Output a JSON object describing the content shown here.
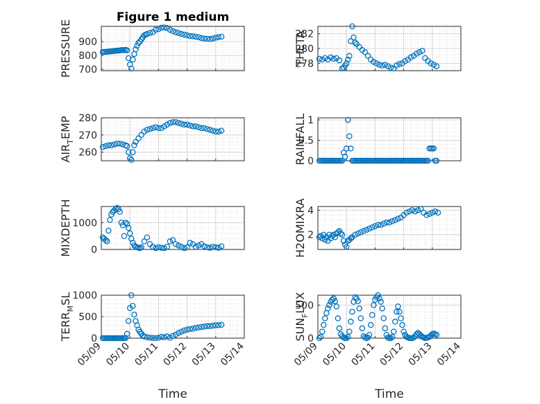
{
  "figure_title": "Figure 1 medium",
  "colors": {
    "marker": "#0072BD",
    "axes": "#262626",
    "grid": "#dfdfdf"
  },
  "chart_data": [
    {
      "type": "scatter",
      "title": "Figure 1 medium",
      "ylabel": {
        "main": "PRESSURE",
        "sub": ""
      },
      "xlabel": "",
      "xlim": [
        0,
        5
      ],
      "ylim": [
        690,
        1010
      ],
      "yticks": [
        700,
        800,
        900
      ],
      "grid": true,
      "x": [
        0.05,
        0.1,
        0.15,
        0.2,
        0.25,
        0.3,
        0.35,
        0.4,
        0.45,
        0.5,
        0.55,
        0.6,
        0.65,
        0.7,
        0.75,
        0.8,
        0.85,
        0.9,
        0.95,
        1.0,
        1.05,
        1.1,
        1.15,
        1.2,
        1.25,
        1.3,
        1.35,
        1.4,
        1.45,
        1.5,
        1.55,
        1.6,
        1.7,
        1.8,
        1.9,
        2.0,
        2.1,
        2.2,
        2.3,
        2.4,
        2.5,
        2.6,
        2.7,
        2.8,
        2.9,
        3.0,
        3.1,
        3.2,
        3.3,
        3.4,
        3.5,
        3.6,
        3.7,
        3.8,
        3.9,
        4.0,
        4.1,
        4.2
      ],
      "y": [
        825,
        825,
        826,
        826,
        828,
        829,
        830,
        831,
        832,
        833,
        834,
        835,
        836,
        838,
        838,
        839,
        840,
        836,
        780,
        735,
        705,
        770,
        810,
        845,
        870,
        890,
        900,
        915,
        930,
        945,
        950,
        955,
        962,
        968,
        985,
        990,
        1000,
        1002,
        998,
        985,
        975,
        968,
        962,
        955,
        950,
        945,
        940,
        938,
        935,
        932,
        925,
        922,
        920,
        918,
        922,
        928,
        932,
        935
      ]
    },
    {
      "type": "scatter",
      "ylabel": {
        "main": "THETA",
        "sub": ""
      },
      "xlabel": "",
      "xlim": [
        0,
        5
      ],
      "ylim": [
        277,
        283
      ],
      "yticks": [
        278,
        280,
        282
      ],
      "grid": true,
      "x": [
        0.05,
        0.15,
        0.25,
        0.35,
        0.45,
        0.55,
        0.65,
        0.75,
        0.85,
        0.9,
        0.95,
        1.0,
        1.05,
        1.1,
        1.15,
        1.2,
        1.25,
        1.3,
        1.35,
        1.45,
        1.55,
        1.65,
        1.75,
        1.85,
        1.95,
        2.05,
        2.15,
        2.25,
        2.35,
        2.45,
        2.55,
        2.65,
        2.75,
        2.85,
        2.95,
        3.05,
        3.15,
        3.25,
        3.35,
        3.45,
        3.55,
        3.65,
        3.75,
        3.85,
        3.95,
        4.05,
        4.15
      ],
      "y": [
        278.6,
        278.5,
        278.7,
        278.5,
        278.8,
        278.6,
        278.7,
        278.4,
        277.3,
        277.4,
        277.7,
        278.0,
        278.5,
        279.0,
        281.0,
        283.0,
        281.5,
        280.8,
        280.6,
        280.2,
        279.8,
        279.5,
        279.0,
        278.5,
        278.2,
        278.0,
        277.8,
        277.7,
        277.8,
        277.6,
        277.4,
        277.3,
        277.7,
        277.9,
        278.0,
        278.3,
        278.5,
        278.8,
        279.0,
        279.3,
        279.5,
        279.7,
        278.7,
        278.3,
        278.0,
        277.8,
        277.6
      ]
    },
    {
      "type": "scatter",
      "ylabel": {
        "main": "AIR",
        "sub": "T",
        "rest": "EMP"
      },
      "xlabel": "",
      "xlim": [
        0,
        5
      ],
      "ylim": [
        255,
        280
      ],
      "yticks": [
        260,
        270,
        280
      ],
      "grid": true,
      "x": [
        0.05,
        0.15,
        0.25,
        0.35,
        0.45,
        0.55,
        0.65,
        0.75,
        0.85,
        0.9,
        0.95,
        1.0,
        1.05,
        1.1,
        1.15,
        1.2,
        1.3,
        1.4,
        1.5,
        1.6,
        1.7,
        1.8,
        1.9,
        2.0,
        2.1,
        2.2,
        2.3,
        2.4,
        2.5,
        2.6,
        2.7,
        2.8,
        2.9,
        3.0,
        3.1,
        3.2,
        3.3,
        3.4,
        3.5,
        3.6,
        3.7,
        3.8,
        3.9,
        4.0,
        4.1,
        4.2
      ],
      "y": [
        263,
        263.5,
        264,
        264,
        264.5,
        265,
        265,
        264.5,
        264,
        263.5,
        260,
        256.5,
        255.5,
        260,
        264,
        266,
        268,
        270,
        272,
        273,
        273.5,
        274,
        274.5,
        274,
        274,
        275,
        276,
        277,
        277.5,
        277.5,
        277,
        276.5,
        276,
        276,
        275.5,
        275,
        275,
        274.5,
        274,
        274,
        273.5,
        273,
        272.5,
        272,
        272,
        272.5
      ]
    },
    {
      "type": "scatter",
      "ylabel": {
        "main": "RAINFALL",
        "sub": ""
      },
      "xlabel": "",
      "xlim": [
        0,
        5
      ],
      "ylim": [
        0,
        1.05
      ],
      "yticks": [
        0,
        0.5,
        1
      ],
      "grid": true,
      "x": [
        0.05,
        0.1,
        0.15,
        0.2,
        0.25,
        0.3,
        0.35,
        0.4,
        0.45,
        0.5,
        0.55,
        0.6,
        0.65,
        0.7,
        0.75,
        0.8,
        0.85,
        0.9,
        0.95,
        1.0,
        1.05,
        1.1,
        1.15,
        1.2,
        1.25,
        1.3,
        1.35,
        1.4,
        1.45,
        1.5,
        1.55,
        1.6,
        1.65,
        1.7,
        1.75,
        1.8,
        1.85,
        1.9,
        1.95,
        2.0,
        2.05,
        2.1,
        2.15,
        2.2,
        2.25,
        2.3,
        2.35,
        2.4,
        2.45,
        2.5,
        2.55,
        2.6,
        2.65,
        2.7,
        2.75,
        2.8,
        2.85,
        2.9,
        2.95,
        3.0,
        3.05,
        3.1,
        3.15,
        3.2,
        3.25,
        3.3,
        3.35,
        3.4,
        3.45,
        3.5,
        3.55,
        3.6,
        3.65,
        3.7,
        3.75,
        3.8,
        3.85,
        3.9,
        3.95,
        4.0,
        4.05,
        4.1,
        4.15
      ],
      "y": [
        0,
        0,
        0,
        0,
        0,
        0,
        0,
        0,
        0,
        0,
        0,
        0,
        0,
        0,
        0,
        0,
        0,
        0.2,
        0.1,
        0.3,
        1.0,
        0.6,
        0.3,
        0,
        0,
        0,
        0,
        0,
        0,
        0,
        0,
        0,
        0,
        0,
        0,
        0,
        0,
        0,
        0,
        0,
        0,
        0,
        0,
        0,
        0,
        0,
        0,
        0,
        0,
        0,
        0,
        0,
        0,
        0,
        0,
        0,
        0,
        0,
        0,
        0,
        0,
        0,
        0,
        0,
        0,
        0,
        0,
        0,
        0,
        0,
        0,
        0,
        0,
        0,
        0,
        0,
        0,
        0.3,
        0.3,
        0.3,
        0.3,
        0,
        0
      ]
    },
    {
      "type": "scatter",
      "ylabel": {
        "main": "MIXDEPTH",
        "sub": ""
      },
      "xlabel": "",
      "xlim": [
        0,
        5
      ],
      "ylim": [
        0,
        1600
      ],
      "yticks": [
        0,
        1000
      ],
      "grid": true,
      "x": [
        0.05,
        0.1,
        0.15,
        0.2,
        0.25,
        0.3,
        0.35,
        0.4,
        0.45,
        0.5,
        0.55,
        0.6,
        0.65,
        0.7,
        0.75,
        0.8,
        0.85,
        0.9,
        0.95,
        1.0,
        1.05,
        1.1,
        1.15,
        1.2,
        1.25,
        1.3,
        1.35,
        1.4,
        1.5,
        1.6,
        1.7,
        1.8,
        1.9,
        2.0,
        2.1,
        2.2,
        2.3,
        2.4,
        2.5,
        2.6,
        2.7,
        2.8,
        2.9,
        3.0,
        3.1,
        3.2,
        3.3,
        3.4,
        3.5,
        3.6,
        3.7,
        3.8,
        3.9,
        4.0,
        4.1,
        4.2
      ],
      "y": [
        450,
        400,
        350,
        300,
        700,
        1100,
        1300,
        1400,
        1450,
        1500,
        1550,
        1500,
        1400,
        1000,
        900,
        500,
        1000,
        950,
        800,
        600,
        400,
        250,
        150,
        100,
        80,
        60,
        50,
        80,
        300,
        450,
        200,
        100,
        50,
        80,
        60,
        50,
        100,
        300,
        350,
        200,
        150,
        100,
        50,
        80,
        250,
        200,
        100,
        150,
        200,
        120,
        80,
        60,
        100,
        80,
        60,
        120
      ]
    },
    {
      "type": "scatter",
      "ylabel": {
        "main": "H2OMIXRA",
        "sub": ""
      },
      "xlabel": "",
      "xlim": [
        0,
        5
      ],
      "ylim": [
        0.8,
        4.3
      ],
      "yticks": [
        2,
        4
      ],
      "grid": true,
      "x": [
        0.05,
        0.1,
        0.15,
        0.2,
        0.25,
        0.3,
        0.35,
        0.4,
        0.45,
        0.5,
        0.55,
        0.6,
        0.65,
        0.7,
        0.75,
        0.8,
        0.85,
        0.9,
        0.95,
        1.0,
        1.05,
        1.1,
        1.15,
        1.2,
        1.3,
        1.4,
        1.5,
        1.6,
        1.7,
        1.8,
        1.9,
        2.0,
        2.1,
        2.2,
        2.3,
        2.4,
        2.5,
        2.6,
        2.7,
        2.8,
        2.9,
        3.0,
        3.1,
        3.2,
        3.3,
        3.4,
        3.5,
        3.6,
        3.7,
        3.8,
        3.9,
        4.0,
        4.1,
        4.2
      ],
      "y": [
        1.8,
        1.9,
        1.7,
        2.0,
        1.6,
        1.8,
        1.5,
        2.0,
        1.7,
        1.9,
        2.0,
        1.8,
        2.1,
        2.2,
        2.3,
        2.1,
        2.0,
        1.5,
        1.2,
        1.0,
        1.5,
        1.6,
        1.7,
        1.8,
        2.0,
        2.1,
        2.2,
        2.3,
        2.4,
        2.5,
        2.6,
        2.7,
        2.8,
        2.8,
        2.9,
        3.0,
        3.0,
        3.1,
        3.2,
        3.3,
        3.4,
        3.6,
        3.8,
        3.9,
        4.0,
        3.9,
        4.0,
        4.1,
        3.8,
        3.6,
        3.7,
        3.8,
        3.9,
        3.8
      ]
    },
    {
      "type": "scatter",
      "ylabel": {
        "main": "TERR",
        "sub": "M",
        "rest": "SL"
      },
      "xlabel": "Time",
      "xlim": [
        0,
        5
      ],
      "ylim": [
        0,
        1000
      ],
      "yticks": [
        0,
        500,
        1000
      ],
      "grid": true,
      "xticks": [
        0,
        1,
        2,
        3,
        4,
        5
      ],
      "xticklabels": [
        "05/09",
        "05/10",
        "05/11",
        "05/12",
        "05/13",
        "05/14"
      ],
      "x": [
        0.05,
        0.1,
        0.15,
        0.2,
        0.25,
        0.3,
        0.35,
        0.4,
        0.45,
        0.5,
        0.55,
        0.6,
        0.65,
        0.7,
        0.75,
        0.8,
        0.85,
        0.9,
        0.95,
        1.0,
        1.05,
        1.1,
        1.15,
        1.2,
        1.25,
        1.3,
        1.35,
        1.4,
        1.45,
        1.5,
        1.6,
        1.7,
        1.8,
        1.9,
        2.0,
        2.1,
        2.2,
        2.3,
        2.4,
        2.5,
        2.6,
        2.7,
        2.8,
        2.9,
        3.0,
        3.1,
        3.2,
        3.3,
        3.4,
        3.5,
        3.6,
        3.7,
        3.8,
        3.9,
        4.0,
        4.1,
        4.2
      ],
      "y": [
        0,
        0,
        0,
        0,
        0,
        0,
        0,
        0,
        0,
        0,
        0,
        0,
        0,
        0,
        0,
        0,
        5,
        100,
        400,
        700,
        1000,
        750,
        550,
        400,
        300,
        200,
        150,
        100,
        60,
        40,
        20,
        10,
        5,
        0,
        10,
        30,
        20,
        40,
        10,
        50,
        80,
        120,
        150,
        180,
        200,
        210,
        220,
        240,
        250,
        260,
        270,
        280,
        280,
        290,
        300,
        300,
        310
      ]
    },
    {
      "type": "scatter",
      "ylabel": {
        "main": "SUN",
        "sub": "F",
        "rest": "LUX"
      },
      "xlabel": "Time",
      "xlim": [
        0,
        5
      ],
      "ylim": [
        0,
        650
      ],
      "yticks": [
        0,
        500
      ],
      "grid": true,
      "xticks": [
        0,
        1,
        2,
        3,
        4,
        5
      ],
      "xticklabels": [
        "05/09",
        "05/10",
        "05/11",
        "05/12",
        "05/13",
        "05/14"
      ],
      "x": [
        0.05,
        0.1,
        0.15,
        0.2,
        0.25,
        0.3,
        0.35,
        0.4,
        0.45,
        0.5,
        0.55,
        0.6,
        0.65,
        0.7,
        0.75,
        0.8,
        0.85,
        0.9,
        0.95,
        1.0,
        1.05,
        1.1,
        1.15,
        1.2,
        1.25,
        1.3,
        1.35,
        1.4,
        1.45,
        1.5,
        1.55,
        1.6,
        1.65,
        1.7,
        1.75,
        1.8,
        1.85,
        1.9,
        1.95,
        2.0,
        2.05,
        2.1,
        2.15,
        2.2,
        2.25,
        2.3,
        2.35,
        2.4,
        2.45,
        2.5,
        2.55,
        2.6,
        2.65,
        2.7,
        2.75,
        2.8,
        2.85,
        2.9,
        2.95,
        3.0,
        3.05,
        3.1,
        3.15,
        3.2,
        3.25,
        3.3,
        3.35,
        3.4,
        3.45,
        3.5,
        3.55,
        3.6,
        3.65,
        3.7,
        3.75,
        3.8,
        3.85,
        3.9,
        3.95,
        4.0,
        4.05,
        4.1,
        4.15
      ],
      "y": [
        0,
        20,
        100,
        200,
        300,
        380,
        450,
        500,
        550,
        580,
        600,
        560,
        480,
        300,
        150,
        60,
        30,
        10,
        0,
        0,
        20,
        100,
        250,
        400,
        550,
        620,
        600,
        560,
        450,
        300,
        150,
        30,
        10,
        0,
        10,
        50,
        200,
        350,
        500,
        580,
        620,
        650,
        600,
        550,
        450,
        300,
        150,
        50,
        10,
        0,
        0,
        20,
        100,
        250,
        400,
        480,
        400,
        300,
        200,
        100,
        50,
        20,
        10,
        0,
        0,
        0,
        10,
        30,
        60,
        80,
        60,
        40,
        20,
        10,
        0,
        5,
        10,
        20,
        40,
        60,
        70,
        60,
        50
      ]
    }
  ]
}
